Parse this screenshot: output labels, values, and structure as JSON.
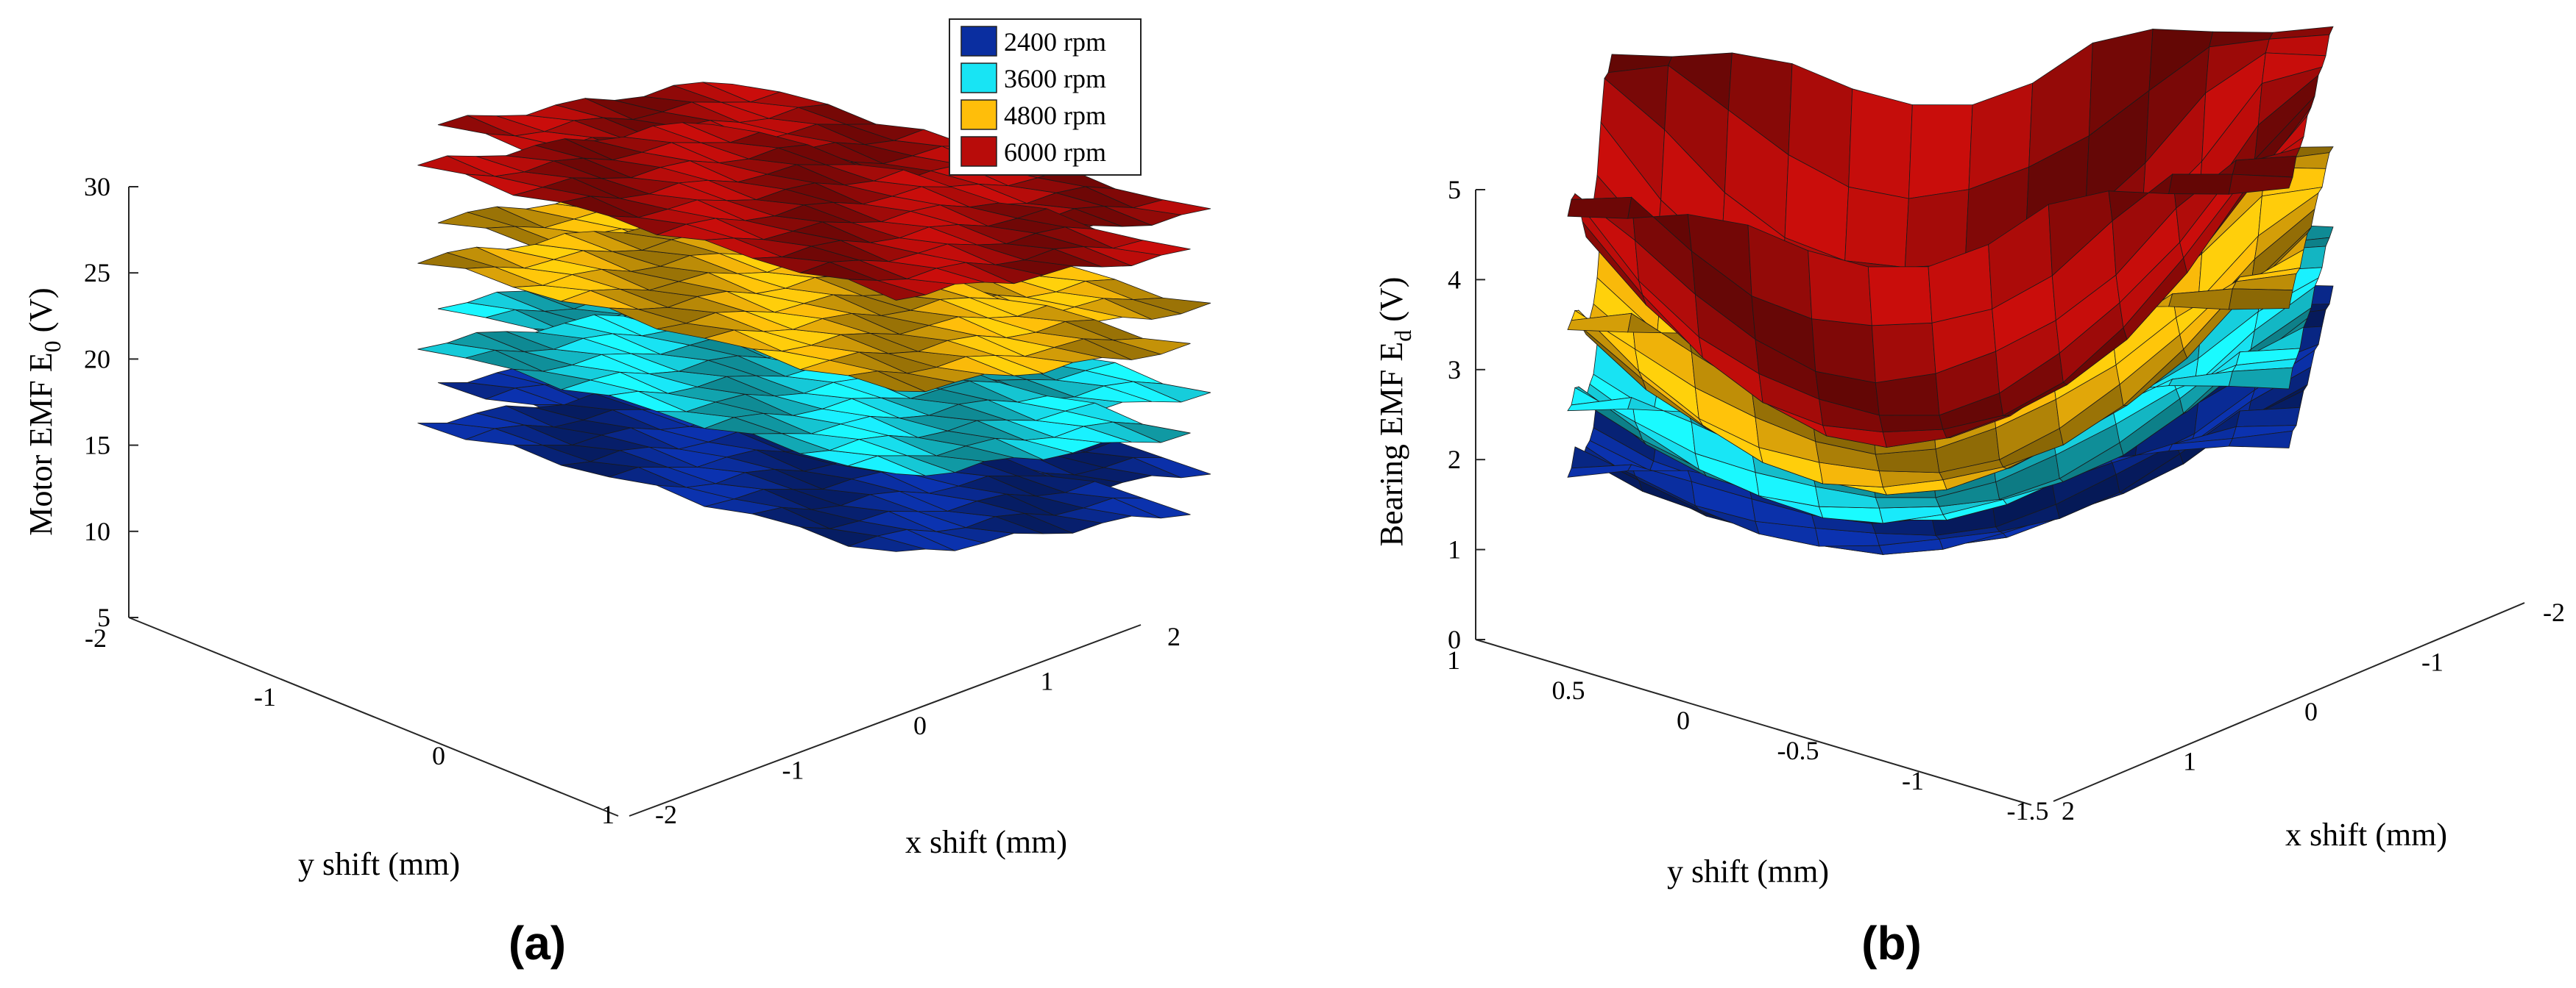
{
  "figure": {
    "legend": [
      {
        "label": "2400 rpm",
        "color": "#0a2ea0"
      },
      {
        "label": "3600 rpm",
        "color": "#18e4f4"
      },
      {
        "label": "4800 rpm",
        "color": "#ffbe0a"
      },
      {
        "label": "6000 rpm",
        "color": "#b80c0a"
      }
    ],
    "panels": [
      {
        "id": "a",
        "label": "(a)"
      },
      {
        "id": "b",
        "label": "(b)"
      }
    ]
  },
  "chart_data": [
    {
      "type": "surface3d",
      "panel": "(a)",
      "zlabel_main": "Motor EMF E",
      "zlabel_sub": "0",
      "zlabel_unit": " (V)",
      "xlabel": "x shift (mm)",
      "ylabel": "y shift (mm)",
      "zlim": [
        5,
        30
      ],
      "z_ticks": [
        "5",
        "10",
        "15",
        "20",
        "25",
        "30"
      ],
      "x_ticks": [
        "-2",
        "-1",
        "0",
        "1",
        "2"
      ],
      "y_ticks": [
        "-2",
        "-1",
        "0",
        "1"
      ],
      "series": [
        {
          "name": "2400 rpm",
          "approx_level_V": 8
        },
        {
          "name": "3600 rpm",
          "approx_level_V": 12.5
        },
        {
          "name": "4800 rpm",
          "approx_level_V": 17.5
        },
        {
          "name": "6000 rpm",
          "approx_level_V": 23
        }
      ]
    },
    {
      "type": "surface3d",
      "panel": "(b)",
      "zlabel_main": "Bearing EMF E",
      "zlabel_sub": "d",
      "zlabel_unit": " (V)",
      "xlabel": "x shift (mm)",
      "ylabel": "y shift (mm)",
      "zlim": [
        0,
        5
      ],
      "z_ticks": [
        "0",
        "1",
        "2",
        "3",
        "4",
        "5"
      ],
      "x_ticks": [
        "-2",
        "-1",
        "0",
        "1",
        "2"
      ],
      "y_ticks": [
        "1",
        "0.5",
        "0",
        "-0.5",
        "-1",
        "-1.5"
      ],
      "series": [
        {
          "name": "2400 rpm",
          "approx_min_V": 0.3,
          "approx_max_V": 2.0
        },
        {
          "name": "3600 rpm",
          "approx_min_V": 0.6,
          "approx_max_V": 2.7
        },
        {
          "name": "4800 rpm",
          "approx_min_V": 0.9,
          "approx_max_V": 3.6
        },
        {
          "name": "6000 rpm",
          "approx_min_V": 1.4,
          "approx_max_V": 4.9
        }
      ]
    }
  ]
}
